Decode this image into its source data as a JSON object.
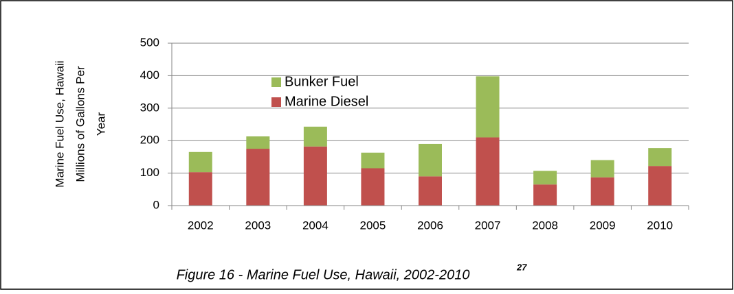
{
  "chart_data": {
    "type": "stacked_bar",
    "y_label": [
      "Marine Fuel Use, Hawaii",
      "Millions of Gallons Per",
      "Year"
    ],
    "caption": "Figure 16 - Marine Fuel Use, Hawaii, 2002-2010",
    "caption_note": "27",
    "categories": [
      "2002",
      "2003",
      "2004",
      "2005",
      "2006",
      "2007",
      "2008",
      "2009",
      "2010"
    ],
    "series": [
      {
        "name": "Marine Diesel",
        "color": "#c0504d",
        "values": [
          103,
          175,
          182,
          115,
          90,
          210,
          65,
          87,
          122
        ]
      },
      {
        "name": "Bunker Fuel",
        "color": "#9bbb59",
        "values": [
          62,
          38,
          61,
          48,
          100,
          188,
          42,
          53,
          55
        ]
      }
    ],
    "ylim": [
      0,
      500
    ],
    "yticks": [
      0,
      100,
      200,
      300,
      400,
      500
    ],
    "grid": true
  }
}
